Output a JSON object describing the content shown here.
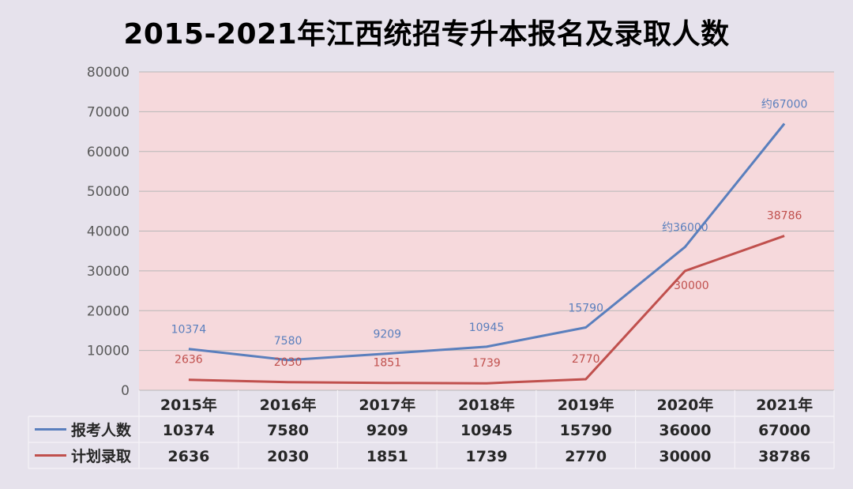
{
  "title": "2015-2021年江西统招专升本报名及录取人数",
  "colors": {
    "plot_bg": "#f6d9dc",
    "blue": "#5a7fbd",
    "red": "#c0504d",
    "grid": "#b7b7b7"
  },
  "chart_data": {
    "type": "line",
    "title": "2015-2021年江西统招专升本报名及录取人数",
    "categories": [
      "2015年",
      "2016年",
      "2017年",
      "2018年",
      "2019年",
      "2020年",
      "2021年"
    ],
    "series": [
      {
        "name": "报考人数",
        "color": "#5a7fbd",
        "values": [
          10374,
          7580,
          9209,
          10945,
          15790,
          36000,
          67000
        ],
        "labels": [
          "10374",
          "7580",
          "9209",
          "10945",
          "15790",
          "约36000",
          "约67000"
        ],
        "table": [
          "10374",
          "7580",
          "9209",
          "10945",
          "15790",
          "36000",
          "67000"
        ]
      },
      {
        "name": "计划录取",
        "color": "#c0504d",
        "values": [
          2636,
          2030,
          1851,
          1739,
          2770,
          30000,
          38786
        ],
        "labels": [
          "2636",
          "2030",
          "1851",
          "1739",
          "2770",
          "30000",
          "38786"
        ],
        "table": [
          "2636",
          "2030",
          "1851",
          "1739",
          "2770",
          "30000",
          "38786"
        ]
      }
    ],
    "ylim": [
      0,
      80000
    ],
    "yticks": [
      "0",
      "10000",
      "20000",
      "30000",
      "40000",
      "50000",
      "60000",
      "70000",
      "80000"
    ],
    "grid": true,
    "legend": "data-table"
  }
}
